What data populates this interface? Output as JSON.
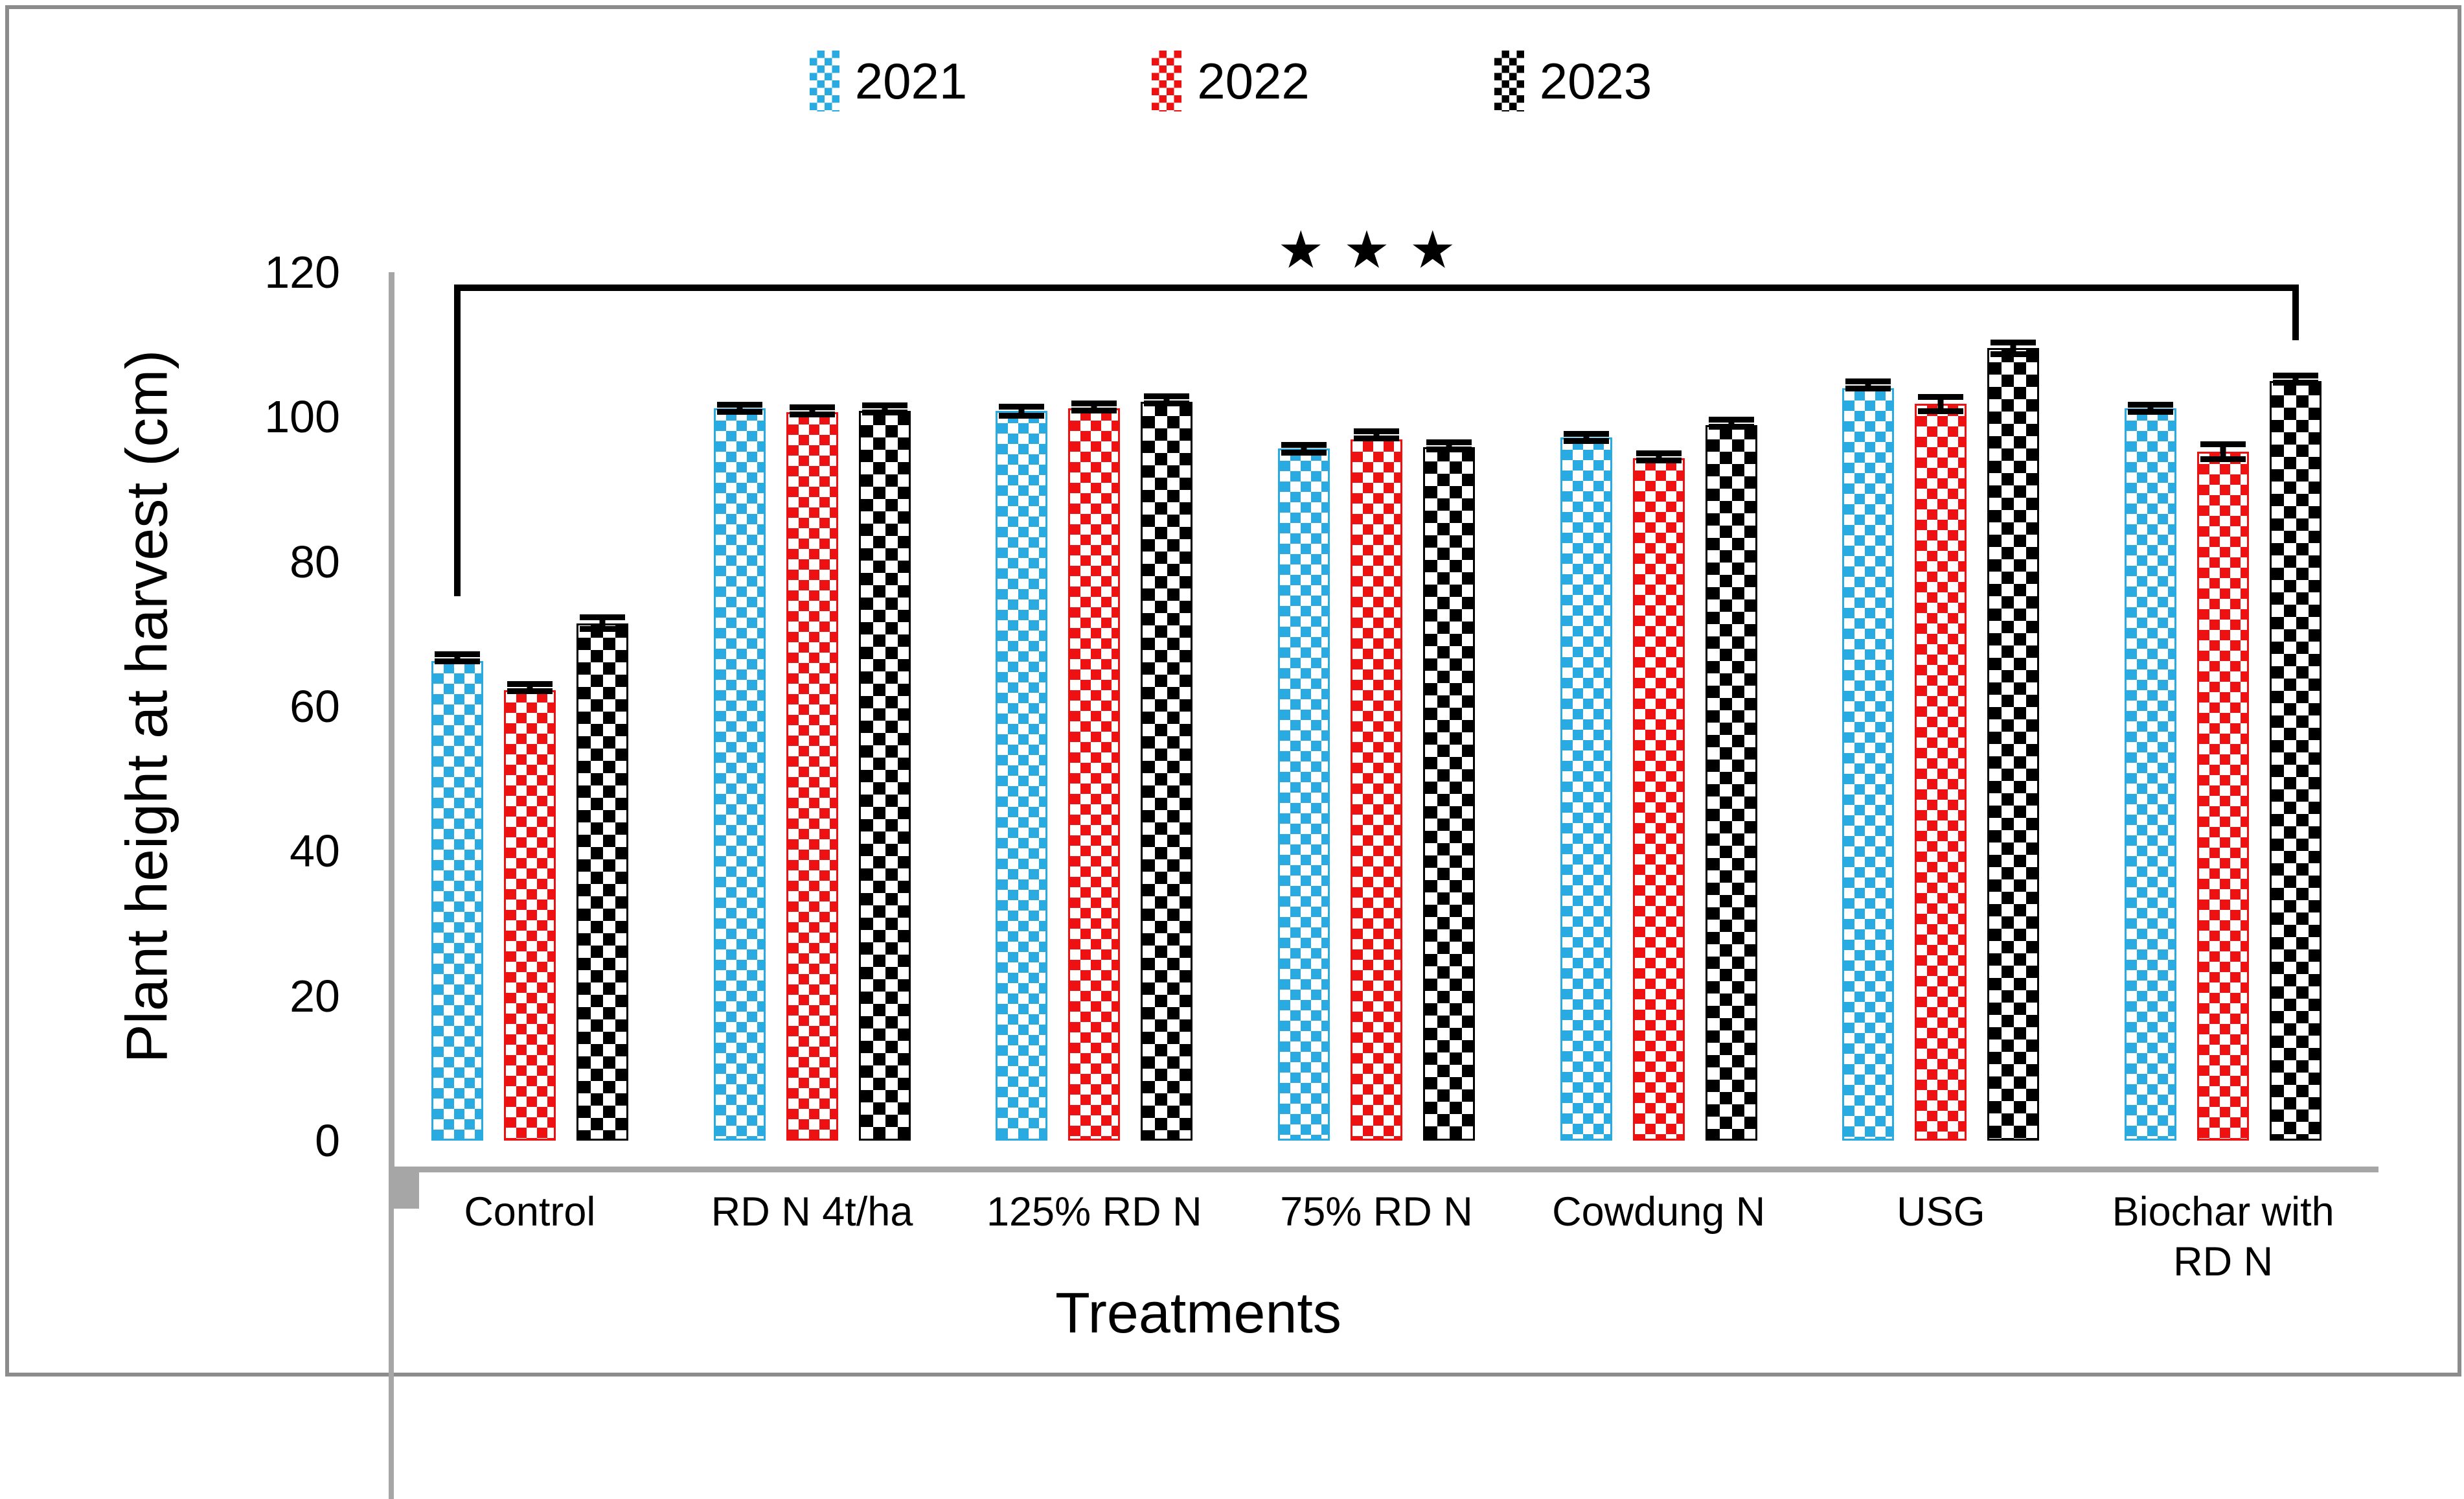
{
  "figure": {
    "background": "#ffffff",
    "frame_color": "#8c8c8c",
    "axis_color": "#a6a6a6"
  },
  "legend": {
    "position": "top-center",
    "items": [
      {
        "label": "2021",
        "color": "#29abe2",
        "pattern": "checker"
      },
      {
        "label": "2022",
        "color": "#ee1111",
        "pattern": "checker"
      },
      {
        "label": "2023",
        "color": "#000000",
        "pattern": "checker"
      }
    ]
  },
  "chart_data": {
    "type": "bar",
    "title": "",
    "categories": [
      "Control",
      "RD N 4t/ha",
      "125% RD N",
      "75% RD N",
      "Cowdung N",
      "USG",
      "Biochar with RD N"
    ],
    "series": [
      {
        "name": "2021",
        "color": "#29abe2",
        "values": [
          66.3,
          101.2,
          100.8,
          95.6,
          97.2,
          104.0,
          101.2
        ],
        "errors": [
          0.5,
          0.9,
          1.0,
          0.9,
          0.9,
          0.5,
          0.9
        ]
      },
      {
        "name": "2022",
        "color": "#ee1111",
        "values": [
          62.2,
          100.7,
          101.2,
          96.9,
          94.3,
          101.8,
          95.2
        ],
        "errors": [
          0.5,
          0.8,
          0.7,
          0.3,
          0.7,
          1.4,
          1.4
        ]
      },
      {
        "name": "2023",
        "color": "#000000",
        "values": [
          71.5,
          100.8,
          102.1,
          95.8,
          98.9,
          109.5,
          105.0
        ],
        "errors": [
          1.2,
          0.6,
          0.6,
          0.7,
          0.7,
          1.2,
          0.7
        ]
      }
    ],
    "xlabel": "Treatments",
    "ylabel": "Plant height at harvest (cm)",
    "ylim": [
      0,
      120
    ],
    "yticks": [
      0,
      20,
      40,
      60,
      80,
      100,
      120
    ],
    "grid": false,
    "legend_position": "top",
    "error_bars": true,
    "annotation": {
      "type": "significance-bracket",
      "label": "★★★",
      "from_category": "Control",
      "from_series": "2021",
      "to_category": "Biochar with RD N",
      "to_series": "2023",
      "bracket_top_cm": 118.3,
      "left_leg_bottom_cm": 75.2,
      "right_leg_bottom_cm": 110.6
    }
  }
}
